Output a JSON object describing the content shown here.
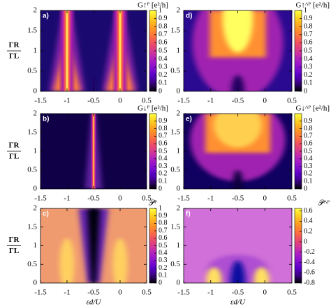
{
  "chart_data": [
    {
      "type": "heatmap",
      "panel_label": "a)",
      "colorbar_label": "G↑ᴾ [e²/h]",
      "ylabel_top": "ΓR",
      "ylabel_bottom": "ΓL",
      "xlim": [
        -1.5,
        0.5
      ],
      "xticks": [
        -1.5,
        -1,
        -0.5,
        0,
        0.5
      ],
      "ylim": [
        0,
        2
      ],
      "yticks": [
        0,
        0.5,
        1,
        1.5,
        2
      ],
      "clim": [
        0,
        1
      ],
      "cticks": [
        0,
        0.1,
        0.2,
        0.3,
        0.4,
        0.5,
        0.6,
        0.7,
        0.8,
        0.9,
        1
      ]
    },
    {
      "type": "heatmap",
      "panel_label": "b)",
      "colorbar_label": "G↓ᴾ [e²/h]",
      "ylabel_top": "ΓR",
      "ylabel_bottom": "ΓL",
      "xlim": [
        -1.5,
        0.5
      ],
      "xticks": [
        -1.5,
        -1,
        -0.5,
        0,
        0.5
      ],
      "ylim": [
        0,
        2
      ],
      "yticks": [
        0,
        0.5,
        1,
        1.5,
        2
      ],
      "clim": [
        0,
        1
      ],
      "cticks": [
        0,
        0.1,
        0.2,
        0.3,
        0.4,
        0.5,
        0.6,
        0.7,
        0.8,
        0.9
      ]
    },
    {
      "type": "heatmap",
      "panel_label": "c)",
      "colorbar_label": "𝒫ᴾ",
      "ylabel_top": "ΓR",
      "ylabel_bottom": "ΓL",
      "xlabel": "εd/U",
      "xlim": [
        -1.5,
        0.5
      ],
      "xticks": [
        -1.5,
        -1,
        -0.5,
        0,
        0.5
      ],
      "ylim": [
        0,
        2
      ],
      "yticks": [
        0,
        0.5,
        1,
        1.5,
        2
      ],
      "clim": [
        0,
        1
      ],
      "cticks": [
        0,
        0.1,
        0.2,
        0.3,
        0.4,
        0.5,
        0.6,
        0.7,
        0.8,
        0.9,
        1
      ]
    },
    {
      "type": "heatmap",
      "panel_label": "d)",
      "colorbar_label": "G↑ᴬᴾ [e²/h]",
      "xlim": [
        -1.5,
        0.5
      ],
      "xticks": [
        -1.5,
        -1,
        -0.5,
        0,
        0.5
      ],
      "ylim": [
        0,
        2
      ],
      "yticks": [
        0,
        0.5,
        1,
        1.5,
        2
      ],
      "clim": [
        0,
        1
      ],
      "cticks": [
        0,
        0.1,
        0.2,
        0.3,
        0.4,
        0.5,
        0.6,
        0.7,
        0.8,
        0.9,
        1
      ]
    },
    {
      "type": "heatmap",
      "panel_label": "e)",
      "colorbar_label": "G↓ᴬᴾ [e²/h]",
      "xlim": [
        -1.5,
        0.5
      ],
      "xticks": [
        -1.5,
        -1,
        -0.5,
        0,
        0.5
      ],
      "ylim": [
        0,
        2
      ],
      "yticks": [
        0,
        0.5,
        1,
        1.5,
        2
      ],
      "clim": [
        0,
        1
      ],
      "cticks": [
        0,
        0.1,
        0.2,
        0.3,
        0.4,
        0.5,
        0.6,
        0.7,
        0.8,
        0.9
      ]
    },
    {
      "type": "heatmap",
      "panel_label": "f)",
      "colorbar_label": "𝒫ᴬᴾ",
      "xlabel": "εd/U",
      "xlim": [
        -1.5,
        0.5
      ],
      "xticks": [
        -1.5,
        -1,
        -0.5,
        0,
        0.5
      ],
      "ylim": [
        0,
        2
      ],
      "yticks": [
        0,
        0.5,
        1,
        1.5,
        2
      ],
      "clim": [
        -0.8,
        0.65
      ],
      "cticks": [
        -0.8,
        -0.6,
        -0.4,
        -0.2,
        0,
        0.2,
        0.4,
        0.6
      ]
    }
  ]
}
